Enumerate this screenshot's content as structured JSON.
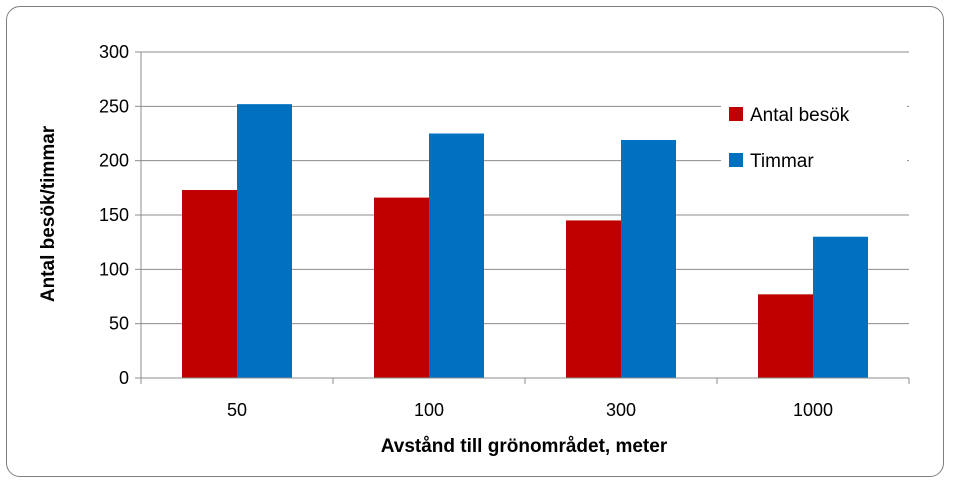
{
  "chart_data": {
    "type": "bar",
    "categories": [
      "50",
      "100",
      "300",
      "1000"
    ],
    "series": [
      {
        "name": "Antal besök",
        "values": [
          173,
          166,
          145,
          77
        ],
        "color": "#c00000"
      },
      {
        "name": "Timmar",
        "values": [
          252,
          225,
          219,
          130
        ],
        "color": "#0070c0"
      }
    ],
    "xlabel": "Avstånd till grönområdet, meter",
    "ylabel": "Antal besök/timmar",
    "ylim": [
      0,
      300
    ],
    "yticks": [
      "0",
      "50",
      "100",
      "150",
      "200",
      "250",
      "300"
    ],
    "grid": true,
    "legend_position": "right"
  }
}
